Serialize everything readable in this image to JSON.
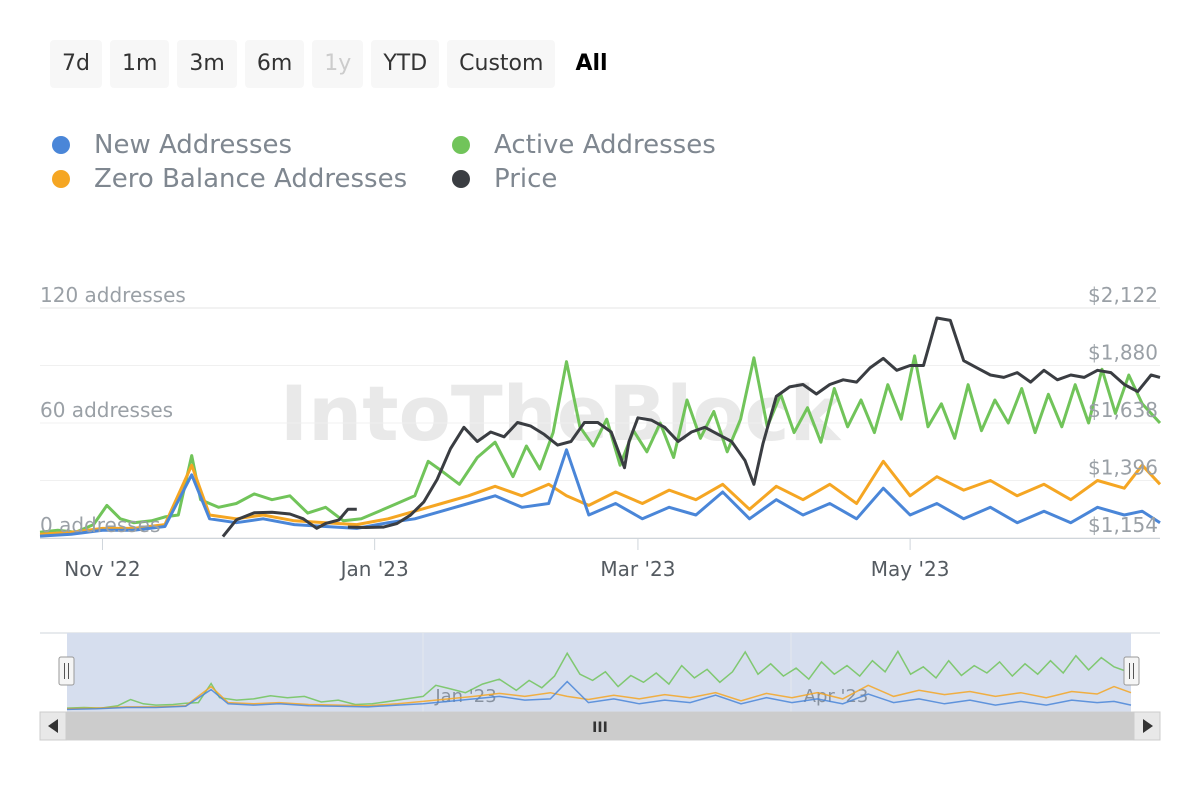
{
  "range_selector": {
    "buttons": [
      {
        "label": "7d",
        "state": "normal"
      },
      {
        "label": "1m",
        "state": "normal"
      },
      {
        "label": "3m",
        "state": "normal"
      },
      {
        "label": "6m",
        "state": "normal"
      },
      {
        "label": "1y",
        "state": "disabled"
      },
      {
        "label": "YTD",
        "state": "normal"
      },
      {
        "label": "Custom",
        "state": "normal"
      },
      {
        "label": "All",
        "state": "selected"
      }
    ]
  },
  "legend": {
    "items": [
      {
        "label": "New Addresses",
        "color": "#4a86d8"
      },
      {
        "label": "Active Addresses",
        "color": "#71c45a"
      },
      {
        "label": "Zero Balance Addresses",
        "color": "#f5a623"
      },
      {
        "label": "Price",
        "color": "#3a3d42"
      }
    ]
  },
  "watermark": "IntoTheBlock",
  "navigator": {
    "labels": [
      "Jan '23",
      "Apr '23"
    ],
    "scrollbar_grip": "III"
  },
  "chart_data": {
    "type": "line",
    "x_range": [
      "2022-10-18",
      "2023-06-26"
    ],
    "x_ticks": [
      {
        "date": "2022-11-01",
        "label": "Nov '22"
      },
      {
        "date": "2023-01-01",
        "label": "Jan '23"
      },
      {
        "date": "2023-03-01",
        "label": "Mar '23"
      },
      {
        "date": "2023-05-01",
        "label": "May '23"
      }
    ],
    "y_left": {
      "ylim": [
        0,
        120
      ],
      "ticks": [
        0,
        60,
        120
      ],
      "tick_labels": [
        "0 addresses",
        "60 addresses",
        "120 addresses"
      ]
    },
    "y_right": {
      "ylim": [
        1154,
        2122
      ],
      "ticks": [
        1154,
        1396,
        1638,
        1880,
        2122
      ],
      "tick_labels": [
        "$1,154",
        "$1,396",
        "$1,638",
        "$1,880",
        "$2,122"
      ]
    },
    "series": [
      {
        "name": "Active Addresses",
        "axis": "left",
        "color": "#71c45a",
        "points": [
          [
            "2022-10-18",
            3
          ],
          [
            "2022-10-22",
            4
          ],
          [
            "2022-10-26",
            3
          ],
          [
            "2022-10-30",
            7
          ],
          [
            "2022-11-02",
            17
          ],
          [
            "2022-11-05",
            10
          ],
          [
            "2022-11-08",
            8
          ],
          [
            "2022-11-12",
            9
          ],
          [
            "2022-11-15",
            11
          ],
          [
            "2022-11-18",
            12
          ],
          [
            "2022-11-21",
            43
          ],
          [
            "2022-11-23",
            20
          ],
          [
            "2022-11-27",
            16
          ],
          [
            "2022-12-01",
            18
          ],
          [
            "2022-12-05",
            23
          ],
          [
            "2022-12-09",
            20
          ],
          [
            "2022-12-13",
            22
          ],
          [
            "2022-12-17",
            13
          ],
          [
            "2022-12-21",
            16
          ],
          [
            "2022-12-25",
            9
          ],
          [
            "2022-12-29",
            10
          ],
          [
            "2023-01-02",
            14
          ],
          [
            "2023-01-06",
            18
          ],
          [
            "2023-01-10",
            22
          ],
          [
            "2023-01-13",
            40
          ],
          [
            "2023-01-16",
            35
          ],
          [
            "2023-01-20",
            28
          ],
          [
            "2023-01-24",
            42
          ],
          [
            "2023-01-28",
            50
          ],
          [
            "2023-02-01",
            32
          ],
          [
            "2023-02-04",
            48
          ],
          [
            "2023-02-07",
            36
          ],
          [
            "2023-02-10",
            55
          ],
          [
            "2023-02-13",
            92
          ],
          [
            "2023-02-16",
            58
          ],
          [
            "2023-02-19",
            48
          ],
          [
            "2023-02-22",
            62
          ],
          [
            "2023-02-25",
            38
          ],
          [
            "2023-02-28",
            56
          ],
          [
            "2023-03-03",
            45
          ],
          [
            "2023-03-06",
            60
          ],
          [
            "2023-03-09",
            42
          ],
          [
            "2023-03-12",
            72
          ],
          [
            "2023-03-15",
            52
          ],
          [
            "2023-03-18",
            66
          ],
          [
            "2023-03-21",
            45
          ],
          [
            "2023-03-24",
            62
          ],
          [
            "2023-03-27",
            94
          ],
          [
            "2023-03-30",
            58
          ],
          [
            "2023-04-02",
            75
          ],
          [
            "2023-04-05",
            55
          ],
          [
            "2023-04-08",
            68
          ],
          [
            "2023-04-11",
            50
          ],
          [
            "2023-04-14",
            78
          ],
          [
            "2023-04-17",
            58
          ],
          [
            "2023-04-20",
            72
          ],
          [
            "2023-04-23",
            55
          ],
          [
            "2023-04-26",
            80
          ],
          [
            "2023-04-29",
            62
          ],
          [
            "2023-05-02",
            95
          ],
          [
            "2023-05-05",
            58
          ],
          [
            "2023-05-08",
            70
          ],
          [
            "2023-05-11",
            52
          ],
          [
            "2023-05-14",
            80
          ],
          [
            "2023-05-17",
            56
          ],
          [
            "2023-05-20",
            72
          ],
          [
            "2023-05-23",
            60
          ],
          [
            "2023-05-26",
            78
          ],
          [
            "2023-05-29",
            55
          ],
          [
            "2023-06-01",
            75
          ],
          [
            "2023-06-04",
            58
          ],
          [
            "2023-06-07",
            80
          ],
          [
            "2023-06-10",
            60
          ],
          [
            "2023-06-13",
            88
          ],
          [
            "2023-06-16",
            65
          ],
          [
            "2023-06-19",
            85
          ],
          [
            "2023-06-22",
            70
          ],
          [
            "2023-06-26",
            60
          ]
        ]
      },
      {
        "name": "Zero Balance Addresses",
        "axis": "left",
        "color": "#f5a623",
        "points": [
          [
            "2022-10-18",
            2
          ],
          [
            "2022-10-25",
            3
          ],
          [
            "2022-11-01",
            5
          ],
          [
            "2022-11-08",
            5
          ],
          [
            "2022-11-15",
            7
          ],
          [
            "2022-11-21",
            38
          ],
          [
            "2022-11-25",
            12
          ],
          [
            "2022-12-01",
            10
          ],
          [
            "2022-12-07",
            12
          ],
          [
            "2022-12-14",
            9
          ],
          [
            "2022-12-21",
            8
          ],
          [
            "2022-12-28",
            7
          ],
          [
            "2023-01-04",
            10
          ],
          [
            "2023-01-10",
            14
          ],
          [
            "2023-01-16",
            18
          ],
          [
            "2023-01-22",
            22
          ],
          [
            "2023-01-28",
            27
          ],
          [
            "2023-02-03",
            22
          ],
          [
            "2023-02-09",
            28
          ],
          [
            "2023-02-13",
            22
          ],
          [
            "2023-02-18",
            17
          ],
          [
            "2023-02-24",
            24
          ],
          [
            "2023-03-02",
            18
          ],
          [
            "2023-03-08",
            25
          ],
          [
            "2023-03-14",
            20
          ],
          [
            "2023-03-20",
            28
          ],
          [
            "2023-03-26",
            15
          ],
          [
            "2023-04-01",
            27
          ],
          [
            "2023-04-07",
            20
          ],
          [
            "2023-04-13",
            28
          ],
          [
            "2023-04-19",
            18
          ],
          [
            "2023-04-25",
            40
          ],
          [
            "2023-05-01",
            22
          ],
          [
            "2023-05-07",
            32
          ],
          [
            "2023-05-13",
            25
          ],
          [
            "2023-05-19",
            30
          ],
          [
            "2023-05-25",
            22
          ],
          [
            "2023-05-31",
            28
          ],
          [
            "2023-06-06",
            20
          ],
          [
            "2023-06-12",
            30
          ],
          [
            "2023-06-18",
            26
          ],
          [
            "2023-06-22",
            38
          ],
          [
            "2023-06-26",
            28
          ]
        ]
      },
      {
        "name": "New Addresses",
        "axis": "left",
        "color": "#4a86d8",
        "points": [
          [
            "2022-10-18",
            1
          ],
          [
            "2022-10-25",
            2
          ],
          [
            "2022-11-01",
            4
          ],
          [
            "2022-11-08",
            4
          ],
          [
            "2022-11-15",
            6
          ],
          [
            "2022-11-21",
            33
          ],
          [
            "2022-11-25",
            10
          ],
          [
            "2022-12-01",
            8
          ],
          [
            "2022-12-07",
            10
          ],
          [
            "2022-12-14",
            7
          ],
          [
            "2022-12-21",
            6
          ],
          [
            "2022-12-28",
            5
          ],
          [
            "2023-01-04",
            8
          ],
          [
            "2023-01-10",
            10
          ],
          [
            "2023-01-16",
            14
          ],
          [
            "2023-01-22",
            18
          ],
          [
            "2023-01-28",
            22
          ],
          [
            "2023-02-03",
            16
          ],
          [
            "2023-02-09",
            18
          ],
          [
            "2023-02-13",
            46
          ],
          [
            "2023-02-18",
            12
          ],
          [
            "2023-02-24",
            18
          ],
          [
            "2023-03-02",
            10
          ],
          [
            "2023-03-08",
            16
          ],
          [
            "2023-03-14",
            12
          ],
          [
            "2023-03-20",
            24
          ],
          [
            "2023-03-26",
            10
          ],
          [
            "2023-04-01",
            20
          ],
          [
            "2023-04-07",
            12
          ],
          [
            "2023-04-13",
            18
          ],
          [
            "2023-04-19",
            10
          ],
          [
            "2023-04-25",
            26
          ],
          [
            "2023-05-01",
            12
          ],
          [
            "2023-05-07",
            18
          ],
          [
            "2023-05-13",
            10
          ],
          [
            "2023-05-19",
            16
          ],
          [
            "2023-05-25",
            8
          ],
          [
            "2023-05-31",
            14
          ],
          [
            "2023-06-06",
            8
          ],
          [
            "2023-06-12",
            16
          ],
          [
            "2023-06-18",
            12
          ],
          [
            "2023-06-22",
            14
          ],
          [
            "2023-06-26",
            8
          ]
        ]
      },
      {
        "name": "Price",
        "axis": "right",
        "color": "#3a3d42",
        "points": [
          [
            "2022-11-28",
            1160
          ],
          [
            "2022-12-01",
            1230
          ],
          [
            "2022-12-05",
            1260
          ],
          [
            "2022-12-09",
            1262
          ],
          [
            "2022-12-13",
            1255
          ],
          [
            "2022-12-16",
            1235
          ],
          [
            "2022-12-19",
            1195
          ],
          [
            "2022-12-21",
            1215
          ],
          [
            "2022-12-24",
            1230
          ],
          [
            "2022-12-26",
            1275
          ],
          [
            "2022-12-28",
            1275
          ]
        ]
      },
      {
        "name": "Price",
        "axis": "right",
        "color": "#3a3d42",
        "points": [
          [
            "2022-12-26",
            1200
          ],
          [
            "2022-12-30",
            1198
          ],
          [
            "2023-01-03",
            1200
          ],
          [
            "2023-01-06",
            1215
          ],
          [
            "2023-01-09",
            1250
          ],
          [
            "2023-01-12",
            1305
          ],
          [
            "2023-01-15",
            1400
          ],
          [
            "2023-01-18",
            1530
          ],
          [
            "2023-01-21",
            1620
          ],
          [
            "2023-01-24",
            1560
          ],
          [
            "2023-01-27",
            1600
          ],
          [
            "2023-01-30",
            1580
          ],
          [
            "2023-02-02",
            1640
          ],
          [
            "2023-02-05",
            1625
          ],
          [
            "2023-02-08",
            1590
          ],
          [
            "2023-02-11",
            1545
          ],
          [
            "2023-02-14",
            1560
          ],
          [
            "2023-02-17",
            1640
          ],
          [
            "2023-02-20",
            1640
          ],
          [
            "2023-02-23",
            1600
          ],
          [
            "2023-02-26",
            1450
          ],
          [
            "2023-02-27",
            1560
          ],
          [
            "2023-03-01",
            1660
          ],
          [
            "2023-03-04",
            1650
          ],
          [
            "2023-03-07",
            1620
          ],
          [
            "2023-03-10",
            1560
          ],
          [
            "2023-03-13",
            1600
          ],
          [
            "2023-03-16",
            1620
          ],
          [
            "2023-03-19",
            1590
          ],
          [
            "2023-03-22",
            1560
          ],
          [
            "2023-03-25",
            1480
          ],
          [
            "2023-03-27",
            1380
          ],
          [
            "2023-03-29",
            1550
          ],
          [
            "2023-04-01",
            1750
          ],
          [
            "2023-04-04",
            1790
          ],
          [
            "2023-04-07",
            1800
          ],
          [
            "2023-04-10",
            1760
          ],
          [
            "2023-04-13",
            1800
          ],
          [
            "2023-04-16",
            1820
          ],
          [
            "2023-04-19",
            1810
          ],
          [
            "2023-04-22",
            1870
          ],
          [
            "2023-04-25",
            1910
          ],
          [
            "2023-04-28",
            1860
          ],
          [
            "2023-05-01",
            1880
          ],
          [
            "2023-05-04",
            1880
          ],
          [
            "2023-05-07",
            2080
          ],
          [
            "2023-05-10",
            2070
          ],
          [
            "2023-05-13",
            1900
          ],
          [
            "2023-05-16",
            1870
          ],
          [
            "2023-05-19",
            1840
          ],
          [
            "2023-05-22",
            1830
          ],
          [
            "2023-05-25",
            1850
          ],
          [
            "2023-05-28",
            1810
          ],
          [
            "2023-05-31",
            1860
          ],
          [
            "2023-06-03",
            1820
          ],
          [
            "2023-06-06",
            1840
          ],
          [
            "2023-06-09",
            1830
          ],
          [
            "2023-06-12",
            1860
          ],
          [
            "2023-06-15",
            1850
          ],
          [
            "2023-06-18",
            1800
          ],
          [
            "2023-06-21",
            1770
          ],
          [
            "2023-06-24",
            1840
          ],
          [
            "2023-06-26",
            1830
          ]
        ]
      }
    ]
  }
}
